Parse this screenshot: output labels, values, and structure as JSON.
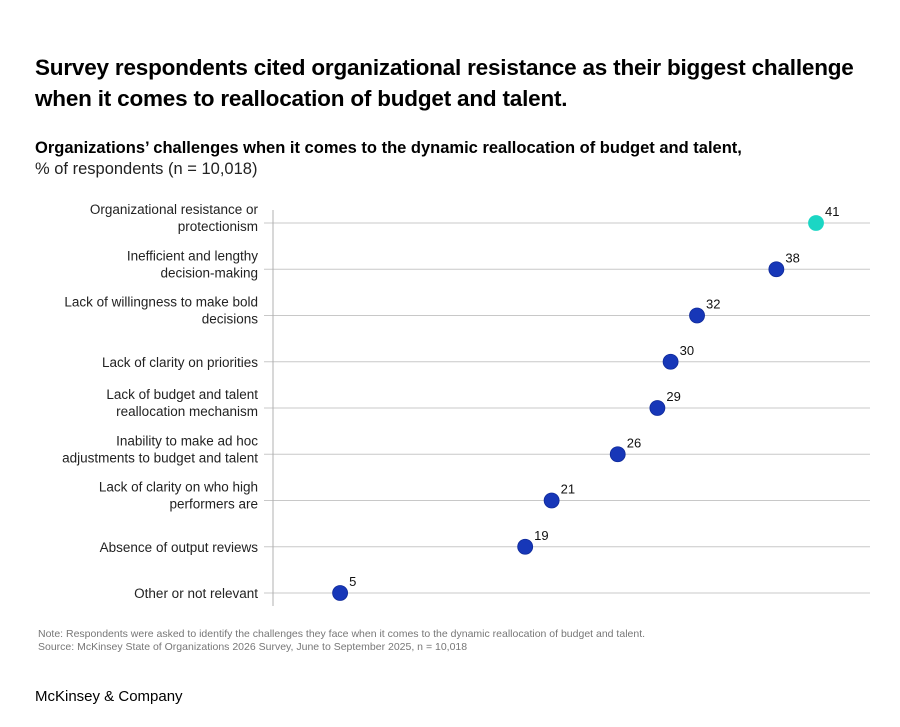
{
  "header": {
    "title": "Survey respondents cited organizational resistance as their biggest challenge when it comes to reallocation of budget and talent.",
    "subtitle": "Organizations’ challenges when it comes to the dynamic reallocation of budget and talent,",
    "unit": "% of respondents (n = 10,018)"
  },
  "footer": {
    "note": "Note: Respondents were asked to identify the challenges they face when it comes to the dynamic reallocation of budget and talent.",
    "source": "Source: McKinsey State of Organizations 2026 Survey, June to September 2025, n = 10,018",
    "brand": "McKinsey & Company"
  },
  "colors": {
    "dot": "#1737B8",
    "highlight": "#1BD6C4",
    "grid": "#C8C8C8",
    "axis": "#B0B0B0"
  },
  "chart_data": {
    "type": "scatter",
    "orientation": "horizontal-dot-plot",
    "title": "Organizations’ challenges when it comes to the dynamic reallocation of budget and talent",
    "xlabel": "% of respondents",
    "ylabel": "",
    "xlim": [
      0,
      41
    ],
    "grid": true,
    "legend": "none",
    "categories": [
      [
        "Organizational resistance or",
        "protectionism"
      ],
      [
        "Inefficient and lengthy",
        "decision-making"
      ],
      [
        "Lack of willingness to make bold",
        "decisions"
      ],
      [
        "Lack of clarity on priorities"
      ],
      [
        "Lack of budget and talent",
        "reallocation mechanism"
      ],
      [
        "Inability to make ad hoc",
        "adjustments to budget and talent"
      ],
      [
        "Lack of clarity on who high",
        "performers are"
      ],
      [
        "Absence of output reviews"
      ],
      [
        "Other or not relevant"
      ]
    ],
    "values": [
      41,
      38,
      32,
      30,
      29,
      26,
      21,
      19,
      5
    ],
    "highlighted": [
      0
    ]
  }
}
